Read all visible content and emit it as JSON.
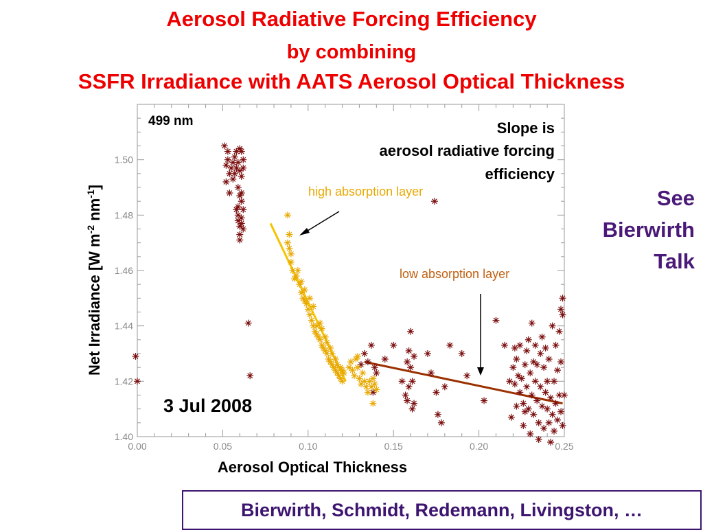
{
  "title": {
    "line1": "Aerosol Radiative Forcing Efficiency",
    "line2": "by combining",
    "line3": "SSFR Irradiance with AATS Aerosol Optical Thickness"
  },
  "side_note": {
    "line1": "See",
    "line2": "Bierwirth",
    "line3": "Talk"
  },
  "authors": "Bierwirth, Schmidt, Redemann, Livingston, …",
  "colors": {
    "title": "#ee0000",
    "note": "#4b1a78",
    "dark_series": "#7a0c0c",
    "light_series": "#e8a800",
    "fit_low": "#9b3000",
    "fit_high": "#f4c400"
  },
  "chart_data": {
    "type": "scatter",
    "xlabel": "Aerosol Optical Thickness",
    "ylabel_parts": [
      "Net  Irradiance [W m",
      "-2",
      " nm",
      "-1",
      "]"
    ],
    "xlim": [
      0.0,
      0.25
    ],
    "ylim": [
      1.4,
      1.52
    ],
    "xticks": [
      "0.00",
      "0.05",
      "0.10",
      "0.15",
      "0.20",
      "0.25"
    ],
    "yticks": [
      "1.40",
      "1.42",
      "1.44",
      "1.46",
      "1.48",
      "1.50"
    ],
    "annotations": {
      "wavelength": "499 nm",
      "slope_line1": "Slope is",
      "slope_line2": "aerosol radiative forcing",
      "slope_line3": "efficiency",
      "high_label": "high absorption layer",
      "low_label": "low absorption layer",
      "date": "3 Jul 2008"
    },
    "series": [
      {
        "color": "#7a0c0c",
        "points": [
          [
            0.051,
            1.505
          ],
          [
            0.052,
            1.498
          ],
          [
            0.053,
            1.5
          ],
          [
            0.052,
            1.492
          ],
          [
            0.054,
            1.488
          ],
          [
            0.053,
            1.503
          ],
          [
            0.055,
            1.497
          ],
          [
            0.056,
            1.499
          ],
          [
            0.054,
            1.495
          ],
          [
            0.057,
            1.501
          ],
          [
            0.056,
            1.493
          ],
          [
            0.058,
            1.497
          ],
          [
            0.059,
            1.499
          ],
          [
            0.06,
            1.504
          ],
          [
            0.061,
            1.503
          ],
          [
            0.062,
            1.5
          ],
          [
            0.06,
            1.496
          ],
          [
            0.059,
            1.49
          ],
          [
            0.061,
            1.494
          ],
          [
            0.062,
            1.497
          ],
          [
            0.058,
            1.503
          ],
          [
            0.057,
            1.495
          ],
          [
            0.06,
            1.487
          ],
          [
            0.059,
            1.483
          ],
          [
            0.061,
            1.479
          ],
          [
            0.06,
            1.476
          ],
          [
            0.062,
            1.482
          ],
          [
            0.061,
            1.485
          ],
          [
            0.059,
            1.48
          ],
          [
            0.06,
            1.471
          ],
          [
            0.062,
            1.475
          ],
          [
            0.061,
            1.477
          ],
          [
            0.06,
            1.473
          ],
          [
            0.059,
            1.478
          ],
          [
            0.061,
            1.488
          ],
          [
            0.058,
            1.482
          ],
          [
            0.065,
            1.441
          ],
          [
            0.066,
            1.422
          ],
          [
            -0.001,
            1.429
          ],
          [
            0.0,
            1.42
          ],
          [
            0.131,
            1.426
          ],
          [
            0.133,
            1.43
          ],
          [
            0.135,
            1.427
          ],
          [
            0.137,
            1.433
          ],
          [
            0.139,
            1.425
          ],
          [
            0.14,
            1.423
          ],
          [
            0.138,
            1.416
          ],
          [
            0.145,
            1.428
          ],
          [
            0.15,
            1.433
          ],
          [
            0.155,
            1.42
          ],
          [
            0.157,
            1.415
          ],
          [
            0.158,
            1.427
          ],
          [
            0.159,
            1.431
          ],
          [
            0.16,
            1.425
          ],
          [
            0.161,
            1.42
          ],
          [
            0.162,
            1.429
          ],
          [
            0.16,
            1.438
          ],
          [
            0.159,
            1.418
          ],
          [
            0.158,
            1.413
          ],
          [
            0.161,
            1.41
          ],
          [
            0.162,
            1.412
          ],
          [
            0.17,
            1.43
          ],
          [
            0.172,
            1.423
          ],
          [
            0.175,
            1.416
          ],
          [
            0.176,
            1.408
          ],
          [
            0.178,
            1.405
          ],
          [
            0.18,
            1.418
          ],
          [
            0.174,
            1.485
          ],
          [
            0.183,
            1.433
          ],
          [
            0.19,
            1.43
          ],
          [
            0.193,
            1.422
          ],
          [
            0.203,
            1.413
          ],
          [
            0.21,
            1.442
          ],
          [
            0.215,
            1.433
          ],
          [
            0.218,
            1.42
          ],
          [
            0.22,
            1.425
          ],
          [
            0.221,
            1.419
          ],
          [
            0.222,
            1.428
          ],
          [
            0.223,
            1.422
          ],
          [
            0.224,
            1.416
          ],
          [
            0.225,
            1.421
          ],
          [
            0.226,
            1.412
          ],
          [
            0.227,
            1.426
          ],
          [
            0.228,
            1.418
          ],
          [
            0.229,
            1.41
          ],
          [
            0.23,
            1.423
          ],
          [
            0.231,
            1.415
          ],
          [
            0.232,
            1.408
          ],
          [
            0.233,
            1.42
          ],
          [
            0.234,
            1.413
          ],
          [
            0.235,
            1.405
          ],
          [
            0.236,
            1.418
          ],
          [
            0.237,
            1.411
          ],
          [
            0.238,
            1.403
          ],
          [
            0.239,
            1.416
          ],
          [
            0.24,
            1.41
          ],
          [
            0.241,
            1.405
          ],
          [
            0.242,
            1.414
          ],
          [
            0.243,
            1.408
          ],
          [
            0.244,
            1.402
          ],
          [
            0.245,
            1.412
          ],
          [
            0.246,
            1.406
          ],
          [
            0.247,
            1.415
          ],
          [
            0.248,
            1.409
          ],
          [
            0.249,
            1.404
          ],
          [
            0.24,
            1.42
          ],
          [
            0.238,
            1.425
          ],
          [
            0.236,
            1.43
          ],
          [
            0.232,
            1.427
          ],
          [
            0.228,
            1.431
          ],
          [
            0.224,
            1.433
          ],
          [
            0.226,
            1.404
          ],
          [
            0.23,
            1.401
          ],
          [
            0.235,
            1.399
          ],
          [
            0.241,
            1.428
          ],
          [
            0.245,
            1.433
          ],
          [
            0.247,
            1.438
          ],
          [
            0.243,
            1.44
          ],
          [
            0.249,
            1.444
          ],
          [
            0.248,
            1.427
          ],
          [
            0.244,
            1.42
          ],
          [
            0.239,
            1.432
          ],
          [
            0.234,
            1.426
          ],
          [
            0.229,
            1.435
          ],
          [
            0.222,
            1.411
          ],
          [
            0.219,
            1.407
          ],
          [
            0.221,
            1.432
          ],
          [
            0.231,
            1.441
          ],
          [
            0.237,
            1.436
          ],
          [
            0.246,
            1.424
          ],
          [
            0.25,
            1.415
          ],
          [
            0.249,
            1.45
          ],
          [
            0.248,
            1.446
          ],
          [
            0.242,
            1.398
          ],
          [
            0.233,
            1.433
          ],
          [
            0.227,
            1.409
          ]
        ]
      },
      {
        "color": "#e8a800",
        "points": [
          [
            0.088,
            1.48
          ],
          [
            0.089,
            1.473
          ],
          [
            0.088,
            1.47
          ],
          [
            0.089,
            1.468
          ],
          [
            0.09,
            1.466
          ],
          [
            0.09,
            1.463
          ],
          [
            0.091,
            1.46
          ],
          [
            0.092,
            1.457
          ],
          [
            0.093,
            1.458
          ],
          [
            0.094,
            1.46
          ],
          [
            0.095,
            1.455
          ],
          [
            0.096,
            1.452
          ],
          [
            0.097,
            1.45
          ],
          [
            0.098,
            1.449
          ],
          [
            0.099,
            1.448
          ],
          [
            0.1,
            1.446
          ],
          [
            0.101,
            1.444
          ],
          [
            0.102,
            1.442
          ],
          [
            0.103,
            1.44
          ],
          [
            0.104,
            1.438
          ],
          [
            0.105,
            1.437
          ],
          [
            0.106,
            1.436
          ],
          [
            0.107,
            1.435
          ],
          [
            0.108,
            1.433
          ],
          [
            0.109,
            1.432
          ],
          [
            0.11,
            1.431
          ],
          [
            0.111,
            1.43
          ],
          [
            0.112,
            1.428
          ],
          [
            0.113,
            1.427
          ],
          [
            0.114,
            1.426
          ],
          [
            0.115,
            1.425
          ],
          [
            0.116,
            1.424
          ],
          [
            0.117,
            1.423
          ],
          [
            0.118,
            1.422
          ],
          [
            0.119,
            1.421
          ],
          [
            0.12,
            1.42
          ],
          [
            0.105,
            1.44
          ],
          [
            0.107,
            1.441
          ],
          [
            0.11,
            1.436
          ],
          [
            0.113,
            1.432
          ],
          [
            0.116,
            1.428
          ],
          [
            0.119,
            1.425
          ],
          [
            0.121,
            1.423
          ],
          [
            0.098,
            1.453
          ],
          [
            0.096,
            1.456
          ],
          [
            0.101,
            1.45
          ],
          [
            0.103,
            1.447
          ],
          [
            0.108,
            1.439
          ],
          [
            0.111,
            1.434
          ],
          [
            0.114,
            1.43
          ],
          [
            0.117,
            1.426
          ],
          [
            0.12,
            1.424
          ],
          [
            0.125,
            1.427
          ],
          [
            0.126,
            1.424
          ],
          [
            0.127,
            1.422
          ],
          [
            0.128,
            1.428
          ],
          [
            0.129,
            1.425
          ],
          [
            0.13,
            1.421
          ],
          [
            0.131,
            1.419
          ],
          [
            0.132,
            1.423
          ],
          [
            0.133,
            1.42
          ],
          [
            0.134,
            1.418
          ],
          [
            0.135,
            1.416
          ],
          [
            0.136,
            1.42
          ],
          [
            0.137,
            1.418
          ],
          [
            0.138,
            1.421
          ],
          [
            0.139,
            1.419
          ],
          [
            0.14,
            1.417
          ],
          [
            0.138,
            1.412
          ],
          [
            0.129,
            1.429
          ],
          [
            0.124,
            1.425
          ]
        ]
      }
    ],
    "fit_lines": [
      {
        "color": "#f4c400",
        "from": [
          0.078,
          1.477
        ],
        "to": [
          0.122,
          1.42
        ]
      },
      {
        "color": "#9b3000",
        "from": [
          0.133,
          1.427
        ],
        "to": [
          0.249,
          1.412
        ]
      }
    ]
  }
}
